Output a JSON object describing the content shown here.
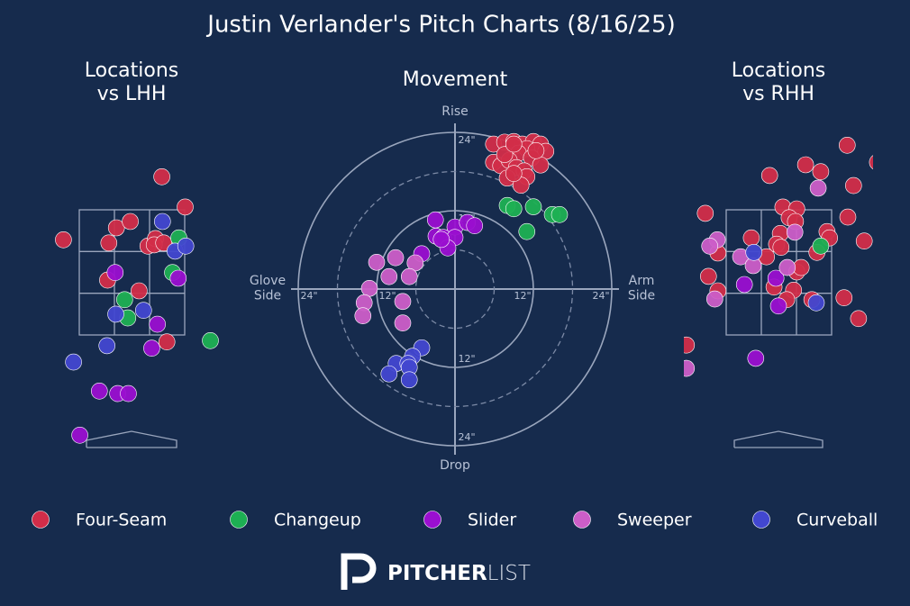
{
  "title": "Justin Verlander's Pitch Charts (8/16/25)",
  "logo": {
    "bold": "PITCHER",
    "light": "LIST"
  },
  "chart_data": [
    {
      "type": "scatter",
      "title": [
        "Locations",
        "vs LHH"
      ],
      "xlim": [
        -1.5,
        1.5
      ],
      "ylim": [
        -0.3,
        4.7
      ],
      "series": [
        {
          "name": "Four-Seam",
          "color": "#d22d49",
          "x": [
            0.48,
            0.85,
            -1.08,
            -0.24,
            -0.02,
            -0.36,
            0.26,
            0.38,
            0.36,
            0.51,
            -0.38,
            0.12,
            0.56
          ],
          "values": [
            4.01,
            3.53,
            3.01,
            3.2,
            3.3,
            2.96,
            2.91,
            3.03,
            2.93,
            2.96,
            2.37,
            2.2,
            1.39
          ]
        },
        {
          "name": "Changeup",
          "color": "#1db053",
          "x": [
            0.75,
            0.65,
            -0.11,
            -0.06,
            1.25
          ],
          "values": [
            3.04,
            2.49,
            2.06,
            1.77,
            1.41
          ]
        },
        {
          "name": "Slider",
          "color": "#9a0fd0",
          "x": [
            -0.26,
            0.74,
            0.41,
            0.32,
            -0.51,
            -0.22,
            -0.05,
            -0.82
          ],
          "values": [
            2.49,
            2.4,
            1.67,
            1.29,
            0.61,
            0.57,
            0.57,
            -0.09
          ]
        },
        {
          "name": "Sweeper",
          "color": "#cc5ec8",
          "x": [],
          "values": []
        },
        {
          "name": "Curveball",
          "color": "#4247d0",
          "x": [
            0.49,
            0.69,
            0.86,
            -0.25,
            0.19,
            -0.39,
            -0.92
          ],
          "values": [
            3.3,
            2.83,
            2.91,
            1.83,
            1.89,
            1.33,
            1.07
          ]
        }
      ]
    },
    {
      "type": "polar",
      "title": [
        "Movement"
      ],
      "xlim": [
        -24,
        24
      ],
      "ylim": [
        -24,
        24
      ],
      "axis_labels": {
        "top": [
          "Rise"
        ],
        "bottom": [
          "Drop"
        ],
        "left": [
          "Glove",
          "Side"
        ],
        "right": [
          "Arm",
          "Side"
        ]
      },
      "rticks": [
        {
          "value": 12,
          "label": "12\""
        },
        {
          "value": 24,
          "label": "24\""
        }
      ],
      "minor_rticks": [
        6,
        18
      ],
      "series": [
        {
          "x": [
            5.9,
            7.6,
            9.0,
            10.3,
            12.0,
            13.1,
            13.9,
            9.0,
            11.0,
            9.7,
            11.7,
            13.1,
            5.9,
            7.0,
            8.3,
            9.4,
            10.6,
            11.0,
            8.0,
            10.1,
            9.0,
            7.6,
            12.4,
            9.0
          ],
          "values": [
            22.2,
            22.5,
            22.6,
            22.2,
            22.6,
            22.2,
            21.1,
            21.8,
            21.5,
            20.8,
            20.1,
            19.0,
            19.4,
            18.9,
            19.7,
            18.6,
            18.1,
            17.2,
            17.0,
            15.9,
            17.7,
            20.6,
            21.2,
            22.2
          ]
        },
        {
          "x": [
            8.0,
            9.0,
            12.0,
            14.9,
            16.0,
            11.0
          ],
          "values": [
            12.8,
            12.3,
            12.6,
            11.4,
            11.4,
            8.8
          ]
        },
        {
          "x": [
            -3.0,
            0,
            1.9,
            3.0,
            -2.9,
            -1.8,
            0,
            -1.1,
            -5.1,
            -2.1
          ],
          "values": [
            10.6,
            9.5,
            10.2,
            9.7,
            8.1,
            7.9,
            7.9,
            6.3,
            5.4,
            7.6
          ]
        },
        {
          "x": [
            -12.0,
            -9.1,
            -6.1,
            -10.1,
            -7.0,
            -13.1,
            -13.9,
            -8.0,
            -14.1,
            -8.0
          ],
          "values": [
            4.1,
            4.8,
            4.0,
            1.9,
            1.9,
            0.1,
            -2.1,
            -1.9,
            -4.1,
            -5.2
          ]
        },
        {
          "x": [
            -5.1,
            -6.5,
            -9.0,
            -7.2,
            -7.0,
            -10.1,
            -7.0
          ],
          "values": [
            -9.0,
            -10.3,
            -11.4,
            -11.4,
            -12.0,
            -13.0,
            -13.9
          ]
        }
      ]
    },
    {
      "type": "scatter",
      "title": [
        "Locations",
        "vs RHH"
      ],
      "xlim": [
        -1.5,
        1.5
      ],
      "ylim": [
        -0.3,
        4.7
      ],
      "series": [
        {
          "x": [
            1.09,
            1.57,
            -0.14,
            0.43,
            0.67,
            1.19,
            -1.16,
            0.07,
            0.29,
            0.17,
            1.1,
            0.03,
            0.27,
            0.77,
            0.81,
            -0.43,
            -0.03,
            0.04,
            1.36,
            0.61,
            -0.96,
            -0.19,
            0.29,
            0.36,
            -1.11,
            0.24,
            -0.07,
            0.13,
            -0.96,
            0.53,
            1.04,
            1.27,
            -1.46
          ],
          "values": [
            4.51,
            4.24,
            4.03,
            4.2,
            4.09,
            3.87,
            3.43,
            3.53,
            3.5,
            3.36,
            3.37,
            3.11,
            3.3,
            3.14,
            3.04,
            3.04,
            2.94,
            2.89,
            2.99,
            2.81,
            2.8,
            2.74,
            2.5,
            2.57,
            2.43,
            2.21,
            2.26,
            2.06,
            2.2,
            2.06,
            2.09,
            1.76,
            1.34
          ]
        },
        {
          "x": [
            0.67
          ],
          "values": [
            2.91
          ]
        },
        {
          "x": [
            -0.04,
            -0.54,
            0,
            -0.36
          ],
          "values": [
            2.4,
            2.3,
            1.96,
            1.13
          ]
        },
        {
          "x": [
            0.63,
            0.26,
            -0.97,
            -1.09,
            -0.6,
            -0.4,
            0.14,
            -1.01,
            -1.46
          ],
          "values": [
            3.83,
            3.13,
            3.01,
            2.91,
            2.74,
            2.6,
            2.57,
            2.07,
            0.97
          ]
        },
        {
          "x": [
            -0.39,
            0.6
          ],
          "values": [
            2.81,
            2.01
          ]
        }
      ]
    }
  ]
}
